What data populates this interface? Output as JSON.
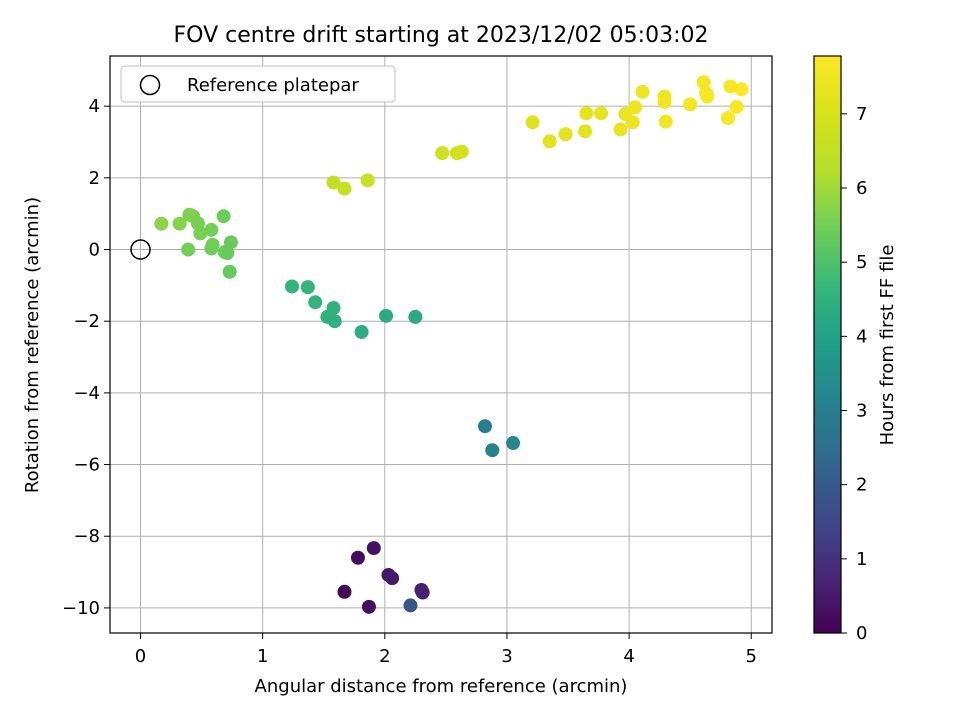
{
  "chart_data": {
    "type": "scatter",
    "title": "FOV centre drift starting at 2023/12/02 05:03:02",
    "xlabel": "Angular distance from reference (arcmin)",
    "ylabel": "Rotation from reference (arcmin)",
    "xlim": [
      -0.25,
      5.17
    ],
    "ylim": [
      -10.7,
      5.4
    ],
    "xticks": [
      0,
      1,
      2,
      3,
      4,
      5
    ],
    "yticks": [
      -10,
      -8,
      -6,
      -4,
      -2,
      0,
      2,
      4
    ],
    "grid": true,
    "legend": {
      "position": "top-left",
      "entries": [
        "Reference platepar"
      ]
    },
    "reference": {
      "x": 0,
      "y": 0,
      "marker": "open-circle"
    },
    "colorbar": {
      "label": "Hours from first FF file",
      "colormap": "viridis",
      "range": [
        0,
        7.78
      ],
      "ticks": [
        0,
        1,
        2,
        3,
        4,
        5,
        6,
        7
      ]
    },
    "points": [
      {
        "x": 1.67,
        "y": -9.55,
        "c": 0.1
      },
      {
        "x": 1.78,
        "y": -8.6,
        "c": 0.2
      },
      {
        "x": 1.87,
        "y": -9.97,
        "c": 0.3
      },
      {
        "x": 1.91,
        "y": -8.33,
        "c": 0.35
      },
      {
        "x": 2.03,
        "y": -9.08,
        "c": 0.4
      },
      {
        "x": 2.06,
        "y": -9.17,
        "c": 0.5
      },
      {
        "x": 2.3,
        "y": -9.5,
        "c": 0.6
      },
      {
        "x": 2.31,
        "y": -9.57,
        "c": 0.65
      },
      {
        "x": 2.21,
        "y": -9.93,
        "c": 1.9
      },
      {
        "x": 2.82,
        "y": -4.93,
        "c": 3.05
      },
      {
        "x": 2.88,
        "y": -5.6,
        "c": 3.15
      },
      {
        "x": 3.05,
        "y": -5.4,
        "c": 3.25
      },
      {
        "x": 1.24,
        "y": -1.03,
        "c": 4.6
      },
      {
        "x": 1.37,
        "y": -1.05,
        "c": 4.6
      },
      {
        "x": 1.43,
        "y": -1.47,
        "c": 4.55
      },
      {
        "x": 1.53,
        "y": -1.88,
        "c": 4.5
      },
      {
        "x": 1.58,
        "y": -1.63,
        "c": 4.5
      },
      {
        "x": 1.59,
        "y": -2.0,
        "c": 4.45
      },
      {
        "x": 1.81,
        "y": -2.3,
        "c": 4.4
      },
      {
        "x": 2.01,
        "y": -1.85,
        "c": 4.3
      },
      {
        "x": 2.25,
        "y": -1.88,
        "c": 4.25
      },
      {
        "x": 0.17,
        "y": 0.72,
        "c": 5.75
      },
      {
        "x": 0.32,
        "y": 0.72,
        "c": 5.7
      },
      {
        "x": 0.4,
        "y": 0.97,
        "c": 5.6
      },
      {
        "x": 0.43,
        "y": 0.93,
        "c": 5.6
      },
      {
        "x": 0.47,
        "y": 0.73,
        "c": 5.55
      },
      {
        "x": 0.49,
        "y": 0.45,
        "c": 5.55
      },
      {
        "x": 0.39,
        "y": 0.0,
        "c": 5.5
      },
      {
        "x": 0.58,
        "y": 0.55,
        "c": 5.5
      },
      {
        "x": 0.59,
        "y": 0.13,
        "c": 5.45
      },
      {
        "x": 0.58,
        "y": 0.03,
        "c": 5.45
      },
      {
        "x": 0.68,
        "y": 0.93,
        "c": 5.4
      },
      {
        "x": 0.69,
        "y": -0.07,
        "c": 5.4
      },
      {
        "x": 0.71,
        "y": -0.1,
        "c": 5.35
      },
      {
        "x": 0.74,
        "y": 0.2,
        "c": 5.35
      },
      {
        "x": 0.73,
        "y": -0.62,
        "c": 5.3
      },
      {
        "x": 1.58,
        "y": 1.87,
        "c": 6.5
      },
      {
        "x": 1.67,
        "y": 1.7,
        "c": 6.55
      },
      {
        "x": 1.86,
        "y": 1.93,
        "c": 6.6
      },
      {
        "x": 2.47,
        "y": 2.69,
        "c": 6.8
      },
      {
        "x": 2.59,
        "y": 2.69,
        "c": 6.85
      },
      {
        "x": 2.63,
        "y": 2.73,
        "c": 6.9
      },
      {
        "x": 3.21,
        "y": 3.55,
        "c": 7.15
      },
      {
        "x": 3.35,
        "y": 3.02,
        "c": 7.2
      },
      {
        "x": 3.48,
        "y": 3.22,
        "c": 7.2
      },
      {
        "x": 3.64,
        "y": 3.3,
        "c": 7.25
      },
      {
        "x": 3.65,
        "y": 3.8,
        "c": 7.3
      },
      {
        "x": 3.77,
        "y": 3.8,
        "c": 7.3
      },
      {
        "x": 3.93,
        "y": 3.35,
        "c": 7.35
      },
      {
        "x": 3.97,
        "y": 3.78,
        "c": 7.4
      },
      {
        "x": 4.03,
        "y": 3.55,
        "c": 7.4
      },
      {
        "x": 4.05,
        "y": 3.97,
        "c": 7.45
      },
      {
        "x": 4.11,
        "y": 4.4,
        "c": 7.5
      },
      {
        "x": 4.29,
        "y": 4.27,
        "c": 7.5
      },
      {
        "x": 4.29,
        "y": 4.12,
        "c": 7.55
      },
      {
        "x": 4.3,
        "y": 3.57,
        "c": 7.55
      },
      {
        "x": 4.5,
        "y": 4.05,
        "c": 7.6
      },
      {
        "x": 4.61,
        "y": 4.67,
        "c": 7.65
      },
      {
        "x": 4.63,
        "y": 4.37,
        "c": 7.65
      },
      {
        "x": 4.64,
        "y": 4.27,
        "c": 7.7
      },
      {
        "x": 4.81,
        "y": 3.67,
        "c": 7.7
      },
      {
        "x": 4.83,
        "y": 4.55,
        "c": 7.72
      },
      {
        "x": 4.88,
        "y": 3.98,
        "c": 7.75
      },
      {
        "x": 4.92,
        "y": 4.47,
        "c": 7.78
      }
    ]
  }
}
